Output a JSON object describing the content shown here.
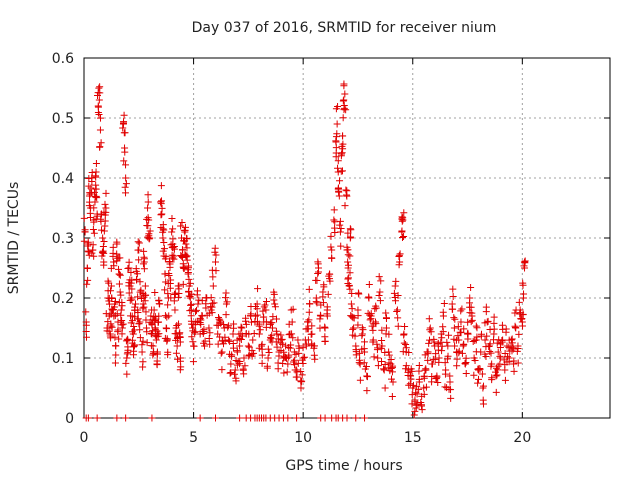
{
  "chart_data": {
    "type": "scatter",
    "title": "Day 037 of 2016, SRMTID for receiver nium",
    "xlabel": "GPS time / hours",
    "ylabel": "SRMTID / TECUs",
    "xlim": [
      0,
      24
    ],
    "ylim": [
      0,
      0.6
    ],
    "xticks": [
      0,
      5,
      10,
      15,
      20
    ],
    "yticks": [
      0,
      0.1,
      0.2,
      0.3,
      0.4,
      0.5,
      0.6
    ],
    "xtick_labels": [
      "0",
      "5",
      "10",
      "15",
      "20"
    ],
    "ytick_labels": [
      "0",
      "0.1",
      "0.2",
      "0.3",
      "0.4",
      "0.5",
      "0.6"
    ],
    "grid": true,
    "marker": "+",
    "color": "#e00000",
    "series": [
      {
        "name": "SRMTID",
        "points": [
          [
            0.05,
            0.31
          ],
          [
            0.1,
            0.16
          ],
          [
            0.15,
            0.25
          ],
          [
            0.2,
            0.29
          ],
          [
            0.25,
            0.37
          ],
          [
            0.3,
            0.35
          ],
          [
            0.35,
            0.4
          ],
          [
            0.4,
            0.28
          ],
          [
            0.45,
            0.33
          ],
          [
            0.5,
            0.36
          ],
          [
            0.55,
            0.41
          ],
          [
            0.6,
            0.34
          ],
          [
            0.65,
            0.52
          ],
          [
            0.7,
            0.53
          ],
          [
            0.75,
            0.48
          ],
          [
            0.8,
            0.34
          ],
          [
            0.85,
            0.3
          ],
          [
            0.9,
            0.26
          ],
          [
            0.95,
            0.32
          ],
          [
            1.0,
            0.35
          ],
          [
            1.05,
            0.15
          ],
          [
            1.1,
            0.2
          ],
          [
            1.15,
            0.17
          ],
          [
            1.2,
            0.14
          ],
          [
            1.25,
            0.22
          ],
          [
            1.3,
            0.18
          ],
          [
            1.35,
            0.26
          ],
          [
            1.4,
            0.19
          ],
          [
            1.45,
            0.12
          ],
          [
            1.5,
            0.29
          ],
          [
            1.55,
            0.16
          ],
          [
            1.6,
            0.24
          ],
          [
            1.65,
            0.21
          ],
          [
            1.7,
            0.18
          ],
          [
            1.75,
            0.15
          ],
          [
            1.8,
            0.49
          ],
          [
            1.85,
            0.45
          ],
          [
            1.9,
            0.4
          ],
          [
            1.95,
            0.1
          ],
          [
            2.0,
            0.13
          ],
          [
            2.05,
            0.25
          ],
          [
            2.1,
            0.22
          ],
          [
            2.15,
            0.2
          ],
          [
            2.2,
            0.17
          ],
          [
            2.25,
            0.14
          ],
          [
            2.3,
            0.12
          ],
          [
            2.35,
            0.19
          ],
          [
            2.4,
            0.23
          ],
          [
            2.45,
            0.18
          ],
          [
            2.5,
            0.28
          ],
          [
            2.55,
            0.16
          ],
          [
            2.6,
            0.21
          ],
          [
            2.65,
            0.11
          ],
          [
            2.7,
            0.19
          ],
          [
            2.75,
            0.26
          ],
          [
            2.8,
            0.22
          ],
          [
            2.85,
            0.15
          ],
          [
            2.9,
            0.35
          ],
          [
            2.95,
            0.33
          ],
          [
            3.0,
            0.3
          ],
          [
            3.05,
            0.17
          ],
          [
            3.1,
            0.14
          ],
          [
            3.15,
            0.12
          ],
          [
            3.2,
            0.18
          ],
          [
            3.25,
            0.15
          ],
          [
            3.3,
            0.13
          ],
          [
            3.35,
            0.11
          ],
          [
            3.4,
            0.16
          ],
          [
            3.45,
            0.19
          ],
          [
            3.5,
            0.36
          ],
          [
            3.55,
            0.34
          ],
          [
            3.6,
            0.3
          ],
          [
            3.65,
            0.27
          ],
          [
            3.7,
            0.24
          ],
          [
            3.75,
            0.15
          ],
          [
            3.8,
            0.13
          ],
          [
            3.85,
            0.2
          ],
          [
            3.9,
            0.26
          ],
          [
            3.95,
            0.23
          ],
          [
            4.0,
            0.31
          ],
          [
            4.05,
            0.29
          ],
          [
            4.1,
            0.27
          ],
          [
            4.15,
            0.18
          ],
          [
            4.2,
            0.15
          ],
          [
            4.25,
            0.12
          ],
          [
            4.3,
            0.22
          ],
          [
            4.35,
            0.14
          ],
          [
            4.4,
            0.1
          ],
          [
            4.45,
            0.3
          ],
          [
            4.5,
            0.28
          ],
          [
            4.55,
            0.25
          ],
          [
            4.6,
            0.31
          ],
          [
            4.65,
            0.29
          ],
          [
            4.7,
            0.27
          ],
          [
            4.75,
            0.24
          ],
          [
            4.8,
            0.22
          ],
          [
            4.85,
            0.2
          ],
          [
            4.9,
            0.18
          ],
          [
            4.95,
            0.15
          ],
          [
            5.0,
            0.12
          ],
          [
            5.1,
            0.16
          ],
          [
            5.2,
            0.19
          ],
          [
            5.3,
            0.14
          ],
          [
            5.4,
            0.17
          ],
          [
            5.5,
            0.12
          ],
          [
            5.6,
            0.2
          ],
          [
            5.7,
            0.15
          ],
          [
            5.8,
            0.18
          ],
          [
            5.9,
            0.22
          ],
          [
            6.0,
            0.26
          ],
          [
            6.1,
            0.14
          ],
          [
            6.2,
            0.16
          ],
          [
            6.3,
            0.11
          ],
          [
            6.4,
            0.15
          ],
          [
            6.5,
            0.19
          ],
          [
            6.6,
            0.13
          ],
          [
            6.7,
            0.09
          ],
          [
            6.8,
            0.14
          ],
          [
            6.9,
            0.08
          ],
          [
            7.0,
            0.11
          ],
          [
            7.1,
            0.12
          ],
          [
            7.2,
            0.15
          ],
          [
            7.3,
            0.1
          ],
          [
            7.4,
            0.14
          ],
          [
            7.5,
            0.12
          ],
          [
            7.6,
            0.17
          ],
          [
            7.7,
            0.13
          ],
          [
            7.8,
            0.16
          ],
          [
            7.9,
            0.19
          ],
          [
            8.0,
            0.14
          ],
          [
            8.1,
            0.12
          ],
          [
            8.2,
            0.16
          ],
          [
            8.3,
            0.18
          ],
          [
            8.4,
            0.1
          ],
          [
            8.5,
            0.13
          ],
          [
            8.6,
            0.15
          ],
          [
            8.7,
            0.19
          ],
          [
            8.8,
            0.14
          ],
          [
            8.9,
            0.11
          ],
          [
            9.0,
            0.13
          ],
          [
            9.1,
            0.1
          ],
          [
            9.2,
            0.12
          ],
          [
            9.3,
            0.09
          ],
          [
            9.4,
            0.14
          ],
          [
            9.5,
            0.16
          ],
          [
            9.6,
            0.11
          ],
          [
            9.7,
            0.08
          ],
          [
            9.8,
            0.12
          ],
          [
            9.9,
            0.05
          ],
          [
            10.0,
            0.1
          ],
          [
            10.1,
            0.13
          ],
          [
            10.2,
            0.16
          ],
          [
            10.3,
            0.19
          ],
          [
            10.4,
            0.14
          ],
          [
            10.5,
            0.12
          ],
          [
            10.6,
            0.2
          ],
          [
            10.7,
            0.25
          ],
          [
            10.8,
            0.17
          ],
          [
            10.9,
            0.21
          ],
          [
            11.0,
            0.15
          ],
          [
            11.1,
            0.18
          ],
          [
            11.2,
            0.24
          ],
          [
            11.3,
            0.28
          ],
          [
            11.4,
            0.33
          ],
          [
            11.5,
            0.46
          ],
          [
            11.55,
            0.49
          ],
          [
            11.6,
            0.41
          ],
          [
            11.65,
            0.37
          ],
          [
            11.7,
            0.31
          ],
          [
            11.75,
            0.44
          ],
          [
            11.8,
            0.47
          ],
          [
            11.85,
            0.53
          ],
          [
            11.9,
            0.54
          ],
          [
            11.95,
            0.38
          ],
          [
            12.0,
            0.28
          ],
          [
            12.05,
            0.25
          ],
          [
            12.1,
            0.22
          ],
          [
            12.15,
            0.3
          ],
          [
            12.2,
            0.19
          ],
          [
            12.3,
            0.15
          ],
          [
            12.4,
            0.12
          ],
          [
            12.5,
            0.18
          ],
          [
            12.6,
            0.09
          ],
          [
            12.7,
            0.14
          ],
          [
            12.8,
            0.11
          ],
          [
            12.9,
            0.07
          ],
          [
            13.0,
            0.2
          ],
          [
            13.1,
            0.17
          ],
          [
            13.2,
            0.13
          ],
          [
            13.3,
            0.16
          ],
          [
            13.4,
            0.1
          ],
          [
            13.5,
            0.21
          ],
          [
            13.6,
            0.12
          ],
          [
            13.7,
            0.08
          ],
          [
            13.8,
            0.15
          ],
          [
            13.9,
            0.11
          ],
          [
            14.0,
            0.09
          ],
          [
            14.1,
            0.06
          ],
          [
            14.2,
            0.22
          ],
          [
            14.3,
            0.18
          ],
          [
            14.4,
            0.26
          ],
          [
            14.5,
            0.31
          ],
          [
            14.55,
            0.33
          ],
          [
            14.6,
            0.14
          ],
          [
            14.7,
            0.11
          ],
          [
            14.8,
            0.08
          ],
          [
            14.9,
            0.07
          ],
          [
            15.0,
            0.05
          ],
          [
            15.1,
            0.03
          ],
          [
            15.2,
            0.04
          ],
          [
            15.3,
            0.06
          ],
          [
            15.4,
            0.02
          ],
          [
            15.5,
            0.05
          ],
          [
            15.6,
            0.08
          ],
          [
            15.7,
            0.11
          ],
          [
            15.8,
            0.15
          ],
          [
            15.9,
            0.09
          ],
          [
            16.0,
            0.12
          ],
          [
            16.1,
            0.07
          ],
          [
            16.2,
            0.1
          ],
          [
            16.3,
            0.14
          ],
          [
            16.4,
            0.17
          ],
          [
            16.5,
            0.08
          ],
          [
            16.6,
            0.12
          ],
          [
            16.7,
            0.06
          ],
          [
            16.8,
            0.19
          ],
          [
            16.9,
            0.15
          ],
          [
            17.0,
            0.11
          ],
          [
            17.1,
            0.13
          ],
          [
            17.2,
            0.16
          ],
          [
            17.3,
            0.12
          ],
          [
            17.4,
            0.09
          ],
          [
            17.5,
            0.14
          ],
          [
            17.6,
            0.2
          ],
          [
            17.7,
            0.17
          ],
          [
            17.8,
            0.1
          ],
          [
            17.9,
            0.13
          ],
          [
            18.0,
            0.08
          ],
          [
            18.1,
            0.11
          ],
          [
            18.2,
            0.05
          ],
          [
            18.3,
            0.13
          ],
          [
            18.4,
            0.16
          ],
          [
            18.5,
            0.12
          ],
          [
            18.6,
            0.09
          ],
          [
            18.7,
            0.14
          ],
          [
            18.8,
            0.07
          ],
          [
            18.9,
            0.11
          ],
          [
            19.0,
            0.1
          ],
          [
            19.1,
            0.13
          ],
          [
            19.2,
            0.08
          ],
          [
            19.3,
            0.12
          ],
          [
            19.4,
            0.1
          ],
          [
            19.5,
            0.13
          ],
          [
            19.6,
            0.09
          ],
          [
            19.7,
            0.15
          ],
          [
            19.8,
            0.12
          ],
          [
            19.9,
            0.18
          ],
          [
            20.0,
            0.16
          ],
          [
            20.05,
            0.2
          ],
          [
            20.1,
            0.25
          ]
        ],
        "zero_points_x": [
          0.1,
          0.2,
          0.6,
          1.5,
          1.9,
          3.1,
          5.3,
          6.0,
          7.1,
          7.4,
          7.6,
          7.8,
          7.9,
          8.0,
          8.1,
          8.2,
          8.3,
          8.5,
          8.7,
          8.9,
          9.1,
          9.3,
          9.7,
          10.8,
          11.0,
          11.3,
          11.5,
          11.6,
          11.8,
          12.0,
          12.4,
          12.8
        ]
      }
    ]
  }
}
